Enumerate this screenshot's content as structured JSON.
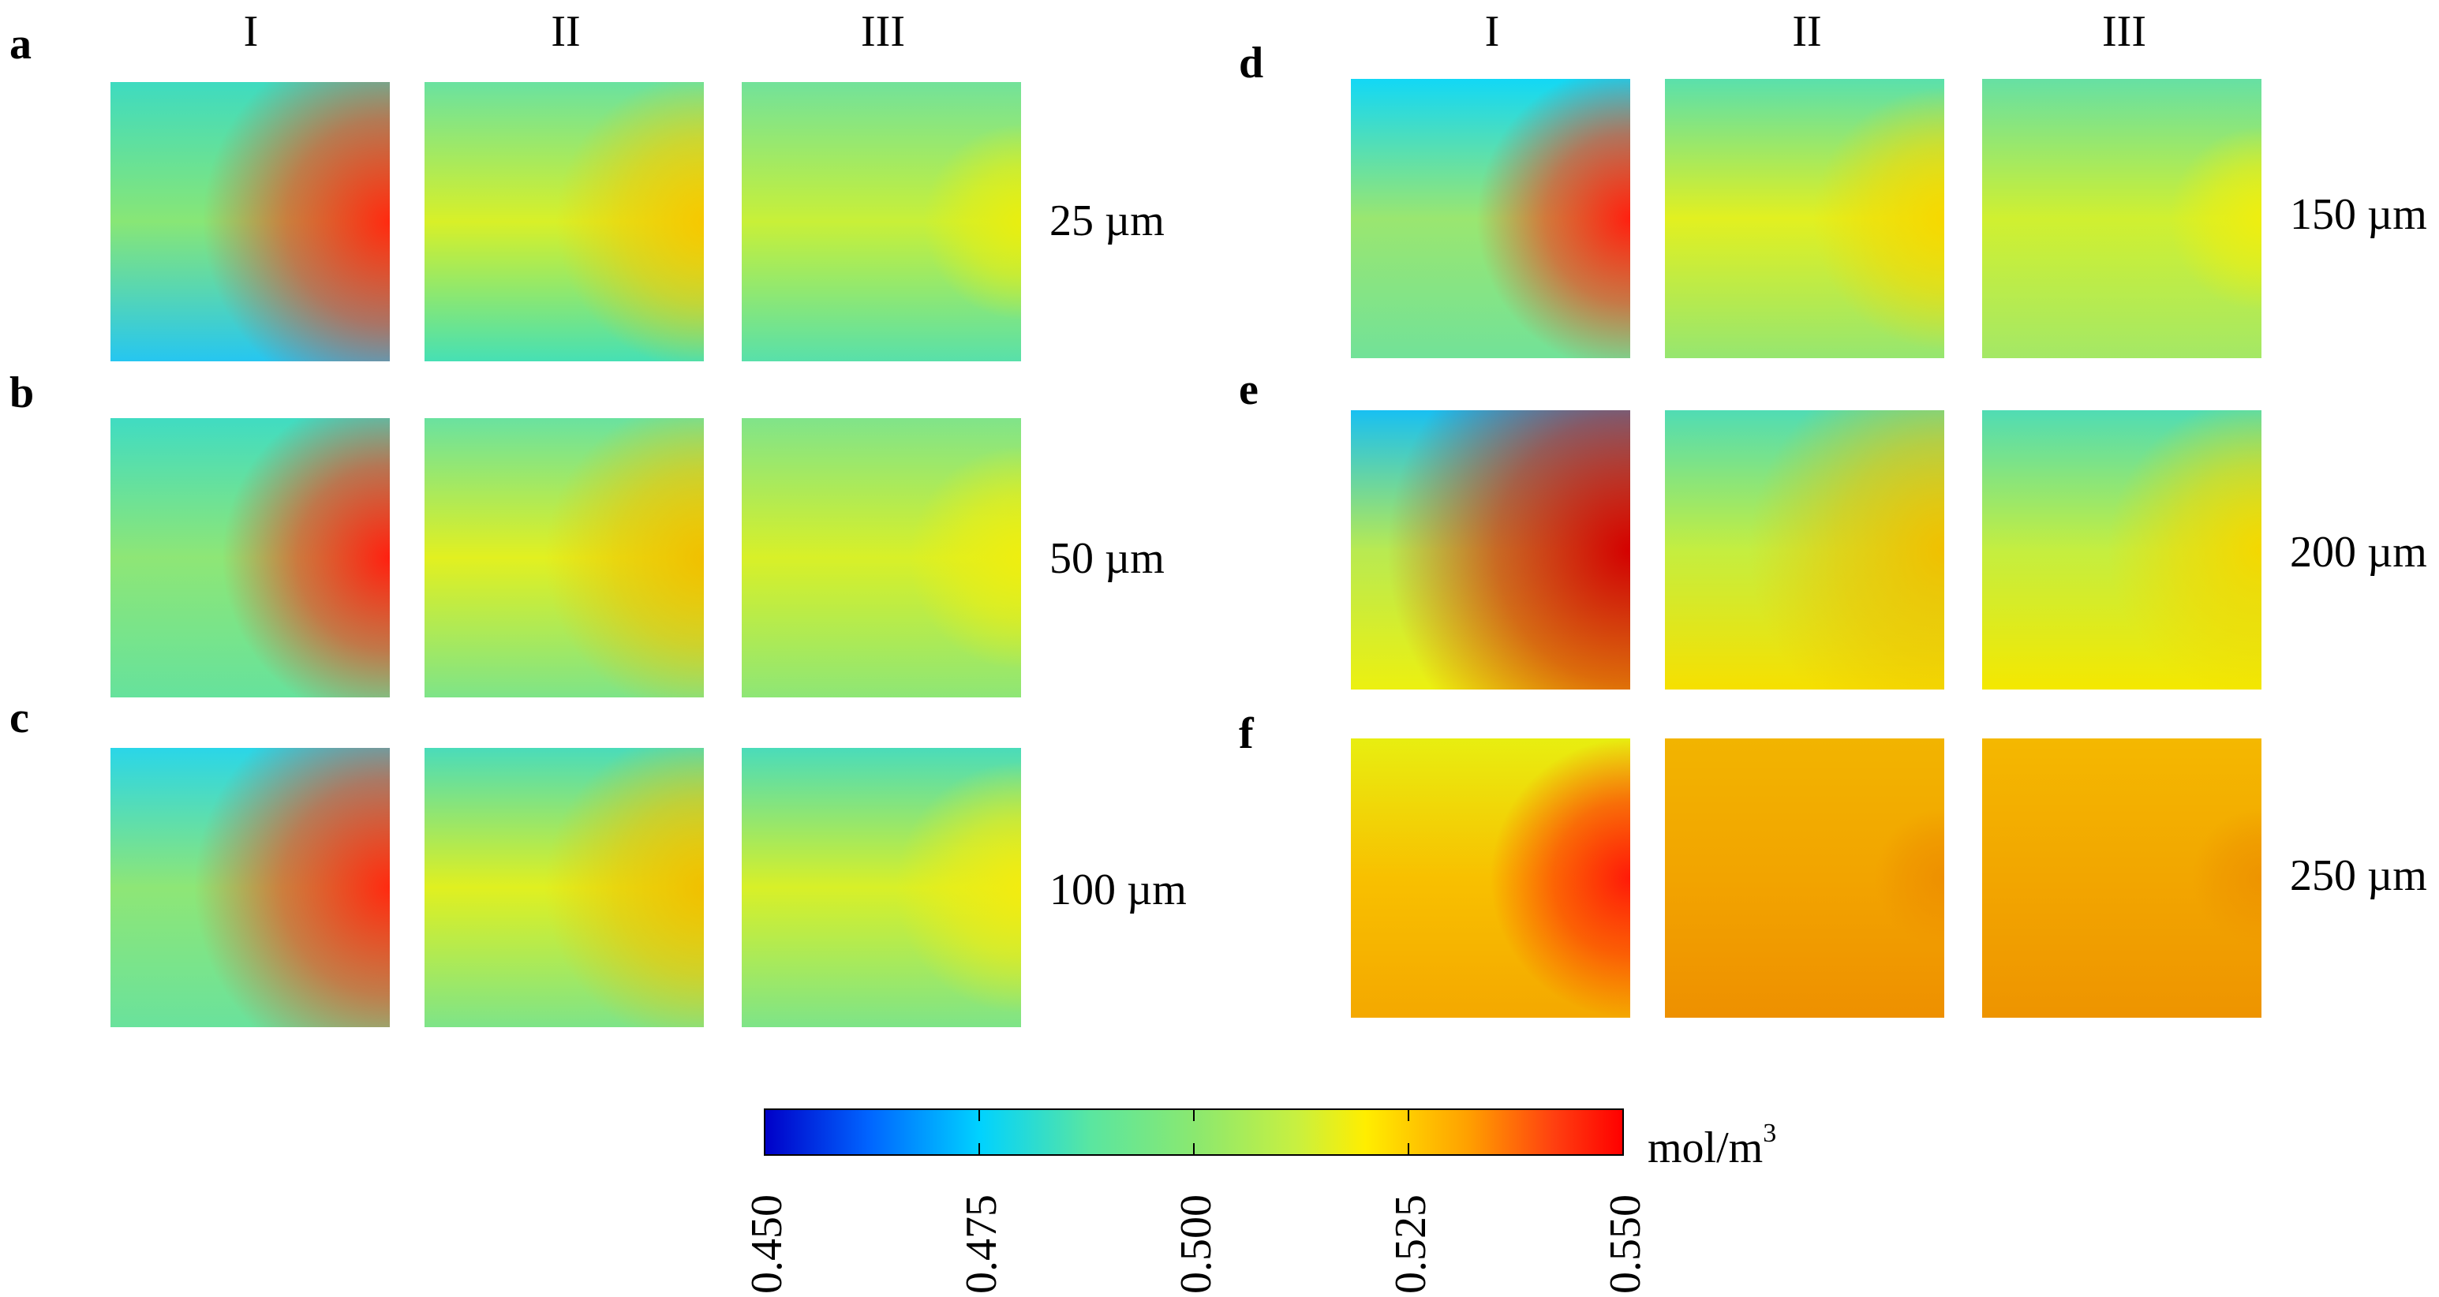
{
  "column_headers": [
    "I",
    "II",
    "III"
  ],
  "panels": [
    {
      "id": "a",
      "label": "a",
      "size": "25 µm",
      "maps": [
        {
          "col": "I",
          "top": "#3edbc0",
          "mid": "#88e676",
          "bottom": "#26c6f0",
          "edge": "#ff2a10",
          "front": 0.42
        },
        {
          "col": "II",
          "top": "#6ae2a0",
          "mid": "#d8f028",
          "bottom": "#46e0b4",
          "edge": "#f6c800",
          "front": 0.28
        },
        {
          "col": "III",
          "top": "#72e29a",
          "mid": "#c8f038",
          "bottom": "#58e0aa",
          "edge": "#e8ee10",
          "front": 0.1
        }
      ]
    },
    {
      "id": "b",
      "label": "b",
      "size": "50 µm",
      "maps": [
        {
          "col": "I",
          "top": "#40dcc2",
          "mid": "#8ee676",
          "bottom": "#66e29c",
          "edge": "#ff2010",
          "front": 0.35
        },
        {
          "col": "II",
          "top": "#6ae2a0",
          "mid": "#e2f020",
          "bottom": "#7ee488",
          "edge": "#f0c000",
          "front": 0.32
        },
        {
          "col": "III",
          "top": "#80e48a",
          "mid": "#d8f028",
          "bottom": "#8ee676",
          "edge": "#eeee10",
          "front": 0.15
        }
      ]
    },
    {
      "id": "c",
      "label": "c",
      "size": "100 µm",
      "maps": [
        {
          "col": "I",
          "top": "#2ad6e8",
          "mid": "#8ee676",
          "bottom": "#6ae29c",
          "edge": "#ff2a10",
          "front": 0.45
        },
        {
          "col": "II",
          "top": "#4adcba",
          "mid": "#e0f020",
          "bottom": "#7ee488",
          "edge": "#f0c000",
          "front": 0.32
        },
        {
          "col": "III",
          "top": "#4adcba",
          "mid": "#d8f028",
          "bottom": "#7ee488",
          "edge": "#f2ec10",
          "front": 0.2
        }
      ]
    },
    {
      "id": "d",
      "label": "d",
      "size": "150 µm",
      "maps": [
        {
          "col": "I",
          "top": "#12d8f6",
          "mid": "#9ae670",
          "bottom": "#72e298",
          "edge": "#ff2010",
          "front": 0.3
        },
        {
          "col": "II",
          "top": "#5ae0ac",
          "mid": "#e2f020",
          "bottom": "#96e670",
          "edge": "#f6d800",
          "front": 0.22
        },
        {
          "col": "III",
          "top": "#66e0a4",
          "mid": "#d0f030",
          "bottom": "#a4e866",
          "edge": "#eeee10",
          "front": 0.08
        }
      ]
    },
    {
      "id": "e",
      "label": "e",
      "size": "200 µm",
      "maps": [
        {
          "col": "I",
          "top": "#18c0f2",
          "mid": "#b8ea52",
          "bottom": "#ecf010",
          "edge": "#d40000",
          "front": 0.62
        },
        {
          "col": "II",
          "top": "#50dcb4",
          "mid": "#c4ee40",
          "bottom": "#f6e000",
          "edge": "#f0c000",
          "front": 0.45
        },
        {
          "col": "III",
          "top": "#50dcb4",
          "mid": "#c4ee40",
          "bottom": "#f4e800",
          "edge": "#f4d800",
          "front": 0.3
        }
      ]
    },
    {
      "id": "f",
      "label": "f",
      "size": "250 µm",
      "maps": [
        {
          "col": "I",
          "top": "#e8ee10",
          "mid": "#f8c000",
          "bottom": "#f4a800",
          "edge": "#ff1a08",
          "front": 0.25
        },
        {
          "col": "II",
          "top": "#f2b400",
          "mid": "#f2a400",
          "bottom": "#ee9000",
          "edge": "#ee9000",
          "front": 0.0
        },
        {
          "col": "III",
          "top": "#f4b800",
          "mid": "#f2a600",
          "bottom": "#ee9400",
          "edge": "#ee9400",
          "front": 0.0
        }
      ]
    }
  ],
  "colorbar": {
    "ticks": [
      "0.450",
      "0.475",
      "0.500",
      "0.525",
      "0.550"
    ],
    "unit": "mol/m",
    "unit_sup": "3",
    "min": 0.45,
    "max": 0.55,
    "colormap": "jet"
  }
}
